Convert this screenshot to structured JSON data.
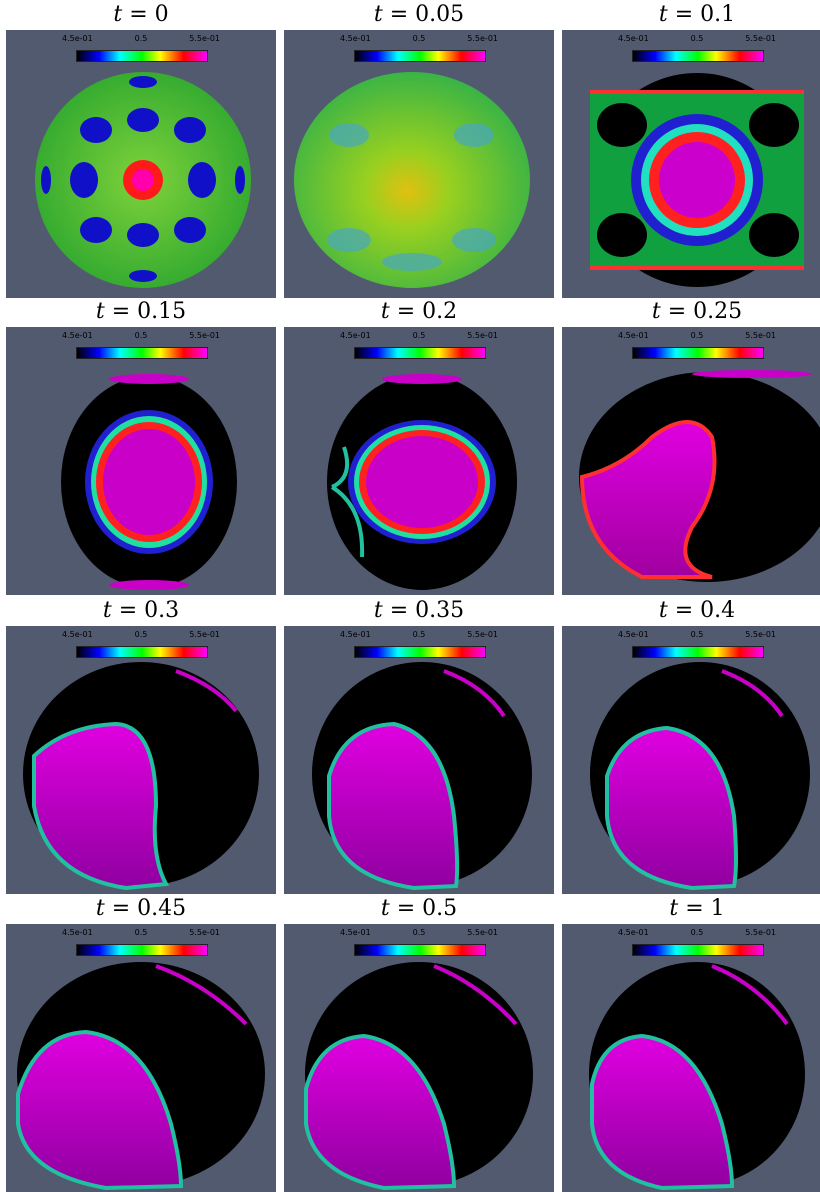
{
  "colorbar": {
    "min_label": "4.5e-01",
    "mid_label": "0.5",
    "max_label": "5.5e-01"
  },
  "panels": [
    {
      "t_label": "t",
      "eq": " = ",
      "value": "0"
    },
    {
      "t_label": "t",
      "eq": " = ",
      "value": "0.05"
    },
    {
      "t_label": "t",
      "eq": " = ",
      "value": "0.1"
    },
    {
      "t_label": "t",
      "eq": " = ",
      "value": "0.15"
    },
    {
      "t_label": "t",
      "eq": " = ",
      "value": "0.2"
    },
    {
      "t_label": "t",
      "eq": " = ",
      "value": "0.25"
    },
    {
      "t_label": "t",
      "eq": " = ",
      "value": "0.3"
    },
    {
      "t_label": "t",
      "eq": " = ",
      "value": "0.35"
    },
    {
      "t_label": "t",
      "eq": " = ",
      "value": "0.4"
    },
    {
      "t_label": "t",
      "eq": " = ",
      "value": "0.45"
    },
    {
      "t_label": "t",
      "eq": " = ",
      "value": "0.5"
    },
    {
      "t_label": "t",
      "eq": " = ",
      "value": "1"
    }
  ],
  "colors": {
    "background": "#525a6f",
    "phase_high": "#c800c8",
    "phase_low": "#000000",
    "mid": "#3ec83e"
  }
}
